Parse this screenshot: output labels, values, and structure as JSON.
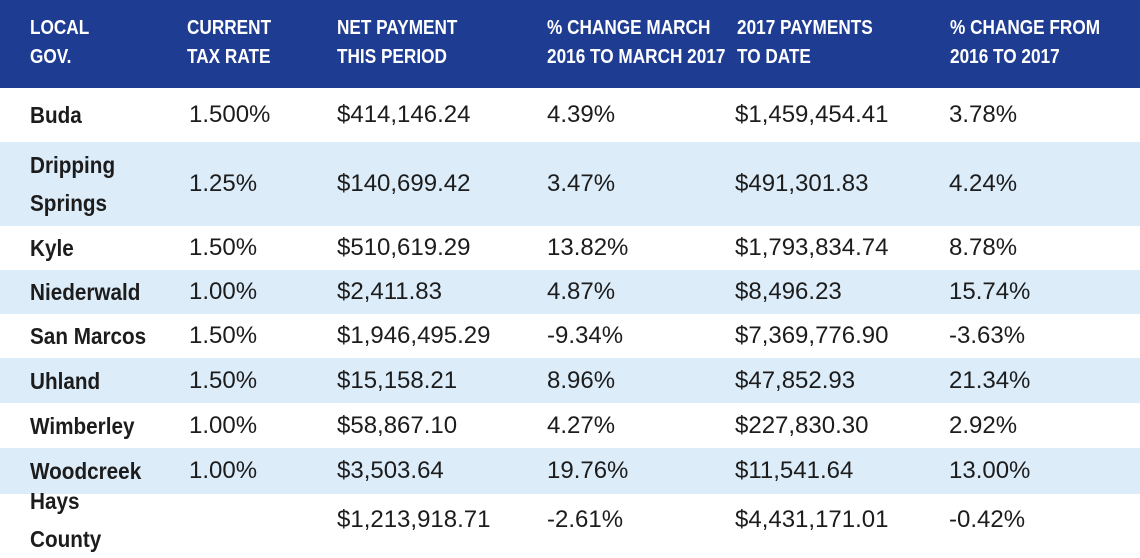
{
  "chart_data": {
    "type": "table",
    "columns": [
      {
        "line1": "LOCAL",
        "line2": "GOV."
      },
      {
        "line1": "CURRENT",
        "line2": "TAX RATE"
      },
      {
        "line1": "NET PAYMENT",
        "line2": "THIS PERIOD"
      },
      {
        "line1": "% CHANGE MARCH",
        "line2": "2016 TO MARCH 2017"
      },
      {
        "line1": "2017 PAYMENTS",
        "line2": "TO DATE"
      },
      {
        "line1": "% CHANGE FROM",
        "line2": "2016 TO 2017"
      }
    ],
    "rows": [
      [
        "Buda",
        "1.500%",
        "$414,146.24",
        "4.39%",
        "$1,459,454.41",
        "3.78%"
      ],
      [
        "Dripping Springs",
        "1.25%",
        "$140,699.42",
        "3.47%",
        "$491,301.83",
        "4.24%"
      ],
      [
        "Kyle",
        "1.50%",
        "$510,619.29",
        "13.82%",
        "$1,793,834.74",
        "8.78%"
      ],
      [
        "Niederwald",
        "1.00%",
        "$2,411.83",
        "4.87%",
        "$8,496.23",
        "15.74%"
      ],
      [
        "San Marcos",
        "1.50%",
        "$1,946,495.29",
        "-9.34%",
        "$7,369,776.90",
        "-3.63%"
      ],
      [
        "Uhland",
        "1.50%",
        "$15,158.21",
        "8.96%",
        "$47,852.93",
        "21.34%"
      ],
      [
        "Wimberley",
        "1.00%",
        "$58,867.10",
        "4.27%",
        "$227,830.30",
        "2.92%"
      ],
      [
        "Woodcreek",
        "1.00%",
        "$3,503.64",
        "19.76%",
        "$11,541.64",
        "13.00%"
      ],
      [
        "Hays County",
        "",
        "$1,213,918.71",
        "-2.61%",
        "$4,431,171.01",
        "-0.42%"
      ]
    ]
  },
  "colors": {
    "header_bg": "#1f3c93",
    "header_text": "#ffffff",
    "row_stripe": "#dcecf9",
    "row_plain": "#ffffff",
    "body_text": "#1c1c1c"
  }
}
